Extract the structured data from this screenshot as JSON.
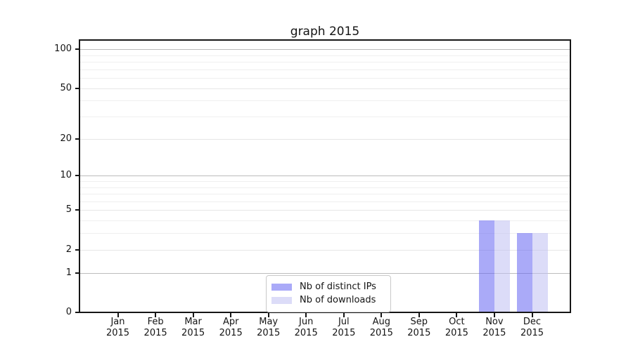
{
  "title": "graph 2015",
  "chart_data": {
    "type": "bar",
    "title": "graph 2015",
    "xlabel": "",
    "ylabel": "",
    "categories": [
      {
        "month": "Jan",
        "year": "2015"
      },
      {
        "month": "Feb",
        "year": "2015"
      },
      {
        "month": "Mar",
        "year": "2015"
      },
      {
        "month": "Apr",
        "year": "2015"
      },
      {
        "month": "May",
        "year": "2015"
      },
      {
        "month": "Jun",
        "year": "2015"
      },
      {
        "month": "Jul",
        "year": "2015"
      },
      {
        "month": "Aug",
        "year": "2015"
      },
      {
        "month": "Sep",
        "year": "2015"
      },
      {
        "month": "Oct",
        "year": "2015"
      },
      {
        "month": "Nov",
        "year": "2015"
      },
      {
        "month": "Dec",
        "year": "2015"
      }
    ],
    "series": [
      {
        "key": "distinct-ips",
        "name": "Nb of distinct IPs",
        "color": "rgba(100,100,243,0.55)",
        "color_hex_on_white": "#aaaaf8",
        "values": [
          0,
          0,
          0,
          0,
          0,
          0,
          0,
          0,
          0,
          0,
          4,
          3
        ]
      },
      {
        "key": "downloads",
        "name": "Nb of downloads",
        "color": "rgba(192,192,243,0.55)",
        "color_hex_on_white": "#dcdcf8",
        "values": [
          0,
          0,
          0,
          0,
          0,
          0,
          0,
          0,
          0,
          0,
          4,
          3
        ]
      }
    ],
    "y_axis": {
      "scale": "log10(1+v)",
      "ylim": [
        0,
        100
      ],
      "tick_values": [
        0,
        1,
        2,
        5,
        10,
        20,
        50,
        100
      ],
      "tick_labels": [
        "0",
        "1",
        "2",
        "5",
        "10",
        "20",
        "50",
        "100"
      ],
      "emphasized_gridlines": [
        1,
        10,
        100
      ],
      "minor_gridlines": [
        3,
        4,
        6,
        7,
        8,
        9,
        30,
        40,
        60,
        70,
        80,
        90
      ]
    },
    "legend": {
      "position": "lower center inside plot",
      "entries": [
        "Nb of distinct IPs",
        "Nb of downloads"
      ]
    },
    "grid": "on"
  },
  "style": {
    "grid_emphasized_color": "#bcbcbc",
    "grid_major_color": "#e6e6e6",
    "grid_minor_color": "#efefef",
    "spine_color": "#161616",
    "text_color": "#141414",
    "background": "#ffffff"
  }
}
